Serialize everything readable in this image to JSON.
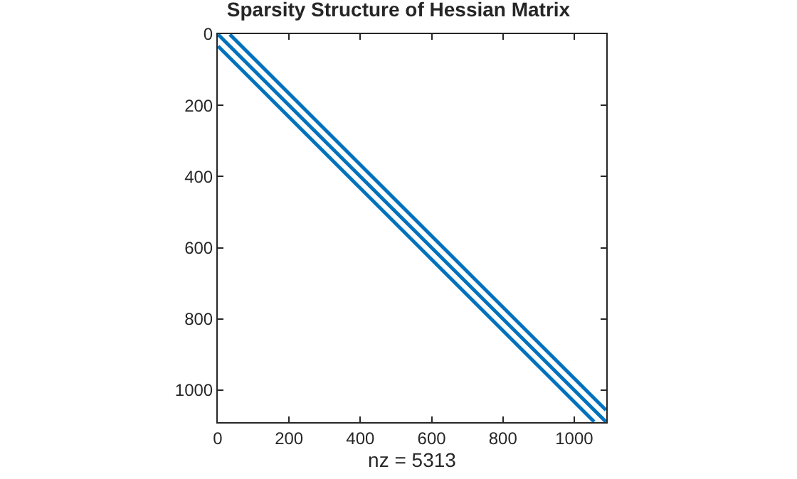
{
  "chart_data": {
    "type": "line",
    "title": "Sparsity Structure of Hessian Matrix",
    "xlabel": "nz = 5313",
    "series": [
      {
        "color": "#0072bd",
        "x": [
          1,
          1089
        ],
        "values": [
          1,
          1089
        ]
      },
      {
        "color": "#0072bd",
        "x": [
          34,
          1089
        ],
        "values": [
          1,
          1056
        ]
      },
      {
        "color": "#0072bd",
        "x": [
          1,
          1056
        ],
        "values": [
          34,
          1089
        ]
      }
    ],
    "xlim": [
      0,
      1090
    ],
    "ylim": [
      1090,
      0
    ],
    "xticks": [
      0,
      200,
      400,
      600,
      800,
      1000
    ],
    "yticks": [
      0,
      200,
      400,
      600,
      800,
      1000
    ],
    "marker": "none",
    "line_style": "solid"
  }
}
